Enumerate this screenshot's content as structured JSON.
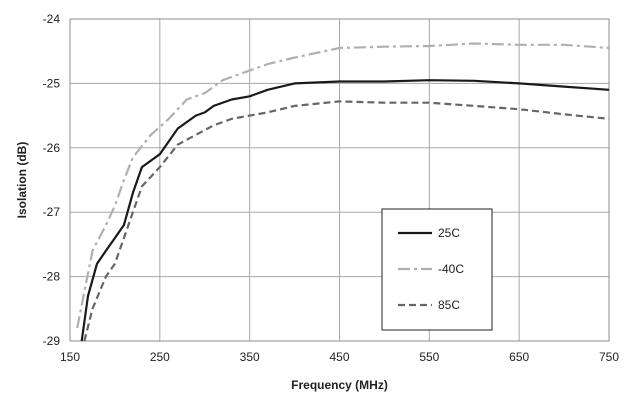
{
  "chart_data": {
    "type": "line",
    "title": "",
    "xlabel": "Frequency (MHz)",
    "ylabel": "Isolation (dB)",
    "xlim": [
      150,
      750
    ],
    "ylim": [
      -29,
      -24
    ],
    "xticks": [
      "150",
      "250",
      "350",
      "450",
      "550",
      "650",
      "750"
    ],
    "yticks": [
      "-24",
      "-25",
      "-26",
      "-27",
      "-28",
      "-29"
    ],
    "grid": true,
    "legend_position": "bottom-right",
    "series": [
      {
        "name": "25C",
        "color": "#1a1a1a",
        "dash": "solid",
        "points": [
          [
            163,
            -29.0
          ],
          [
            170,
            -28.3
          ],
          [
            180,
            -27.8
          ],
          [
            190,
            -27.6
          ],
          [
            200,
            -27.4
          ],
          [
            210,
            -27.2
          ],
          [
            220,
            -26.7
          ],
          [
            230,
            -26.3
          ],
          [
            250,
            -26.1
          ],
          [
            270,
            -25.7
          ],
          [
            290,
            -25.5
          ],
          [
            300,
            -25.45
          ],
          [
            310,
            -25.35
          ],
          [
            330,
            -25.25
          ],
          [
            350,
            -25.2
          ],
          [
            370,
            -25.1
          ],
          [
            400,
            -25.0
          ],
          [
            450,
            -24.97
          ],
          [
            500,
            -24.97
          ],
          [
            550,
            -24.95
          ],
          [
            600,
            -24.96
          ],
          [
            650,
            -25.0
          ],
          [
            700,
            -25.05
          ],
          [
            750,
            -25.1
          ]
        ]
      },
      {
        "name": "-40C",
        "color": "#b0b0b0",
        "dash": "dashdot",
        "points": [
          [
            158,
            -28.8
          ],
          [
            165,
            -28.3
          ],
          [
            175,
            -27.6
          ],
          [
            190,
            -27.2
          ],
          [
            200,
            -26.9
          ],
          [
            210,
            -26.5
          ],
          [
            220,
            -26.15
          ],
          [
            240,
            -25.8
          ],
          [
            260,
            -25.55
          ],
          [
            280,
            -25.25
          ],
          [
            300,
            -25.15
          ],
          [
            320,
            -24.95
          ],
          [
            340,
            -24.85
          ],
          [
            370,
            -24.7
          ],
          [
            400,
            -24.6
          ],
          [
            450,
            -24.45
          ],
          [
            500,
            -24.43
          ],
          [
            550,
            -24.42
          ],
          [
            600,
            -24.38
          ],
          [
            650,
            -24.4
          ],
          [
            700,
            -24.4
          ],
          [
            750,
            -24.45
          ]
        ]
      },
      {
        "name": "85C",
        "color": "#666666",
        "dash": "dashed",
        "points": [
          [
            166,
            -29.0
          ],
          [
            175,
            -28.5
          ],
          [
            190,
            -28.0
          ],
          [
            200,
            -27.8
          ],
          [
            210,
            -27.4
          ],
          [
            220,
            -27.0
          ],
          [
            230,
            -26.6
          ],
          [
            250,
            -26.3
          ],
          [
            270,
            -25.95
          ],
          [
            290,
            -25.8
          ],
          [
            310,
            -25.65
          ],
          [
            330,
            -25.55
          ],
          [
            350,
            -25.5
          ],
          [
            370,
            -25.45
          ],
          [
            400,
            -25.35
          ],
          [
            450,
            -25.28
          ],
          [
            500,
            -25.3
          ],
          [
            550,
            -25.3
          ],
          [
            600,
            -25.35
          ],
          [
            650,
            -25.4
          ],
          [
            700,
            -25.48
          ],
          [
            750,
            -25.55
          ]
        ]
      }
    ]
  }
}
